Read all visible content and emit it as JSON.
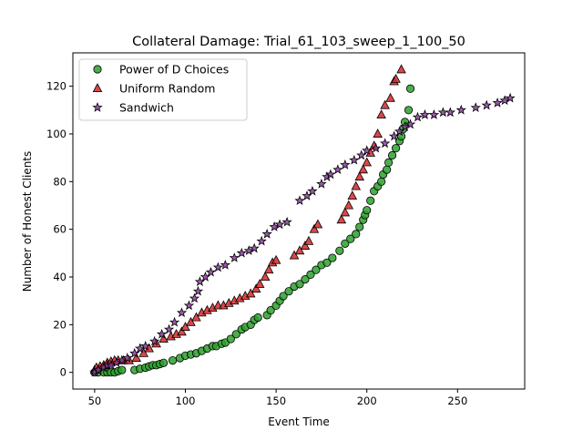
{
  "chart_data": {
    "type": "scatter",
    "title": "Collateral Damage: Trial_61_103_sweep_1_100_50",
    "xlabel": "Event Time",
    "ylabel": "Number of Honest Clients",
    "xlim": [
      38,
      287
    ],
    "ylim": [
      -7,
      134
    ],
    "xticks": [
      50,
      100,
      150,
      200,
      250
    ],
    "yticks": [
      0,
      20,
      40,
      60,
      80,
      100,
      120
    ],
    "grid": false,
    "legend_position": "top-left",
    "series": [
      {
        "name": "Power of D Choices",
        "marker": "circle",
        "color": "#2ca02c",
        "points": [
          [
            50,
            0
          ],
          [
            52,
            0
          ],
          [
            55,
            0
          ],
          [
            57,
            0
          ],
          [
            59,
            0
          ],
          [
            61,
            0
          ],
          [
            63,
            0.5
          ],
          [
            65,
            1
          ],
          [
            72,
            1
          ],
          [
            75,
            1.5
          ],
          [
            78,
            2
          ],
          [
            80,
            2.5
          ],
          [
            82,
            3
          ],
          [
            84,
            3
          ],
          [
            86,
            3.5
          ],
          [
            88,
            4
          ],
          [
            93,
            5
          ],
          [
            97,
            6
          ],
          [
            100,
            7
          ],
          [
            103,
            7.5
          ],
          [
            106,
            8
          ],
          [
            109,
            9
          ],
          [
            112,
            10
          ],
          [
            115,
            11
          ],
          [
            117,
            11
          ],
          [
            120,
            12
          ],
          [
            122,
            12.5
          ],
          [
            125,
            14
          ],
          [
            128,
            16
          ],
          [
            131,
            18
          ],
          [
            133,
            19
          ],
          [
            136,
            20
          ],
          [
            138,
            22
          ],
          [
            140,
            23
          ],
          [
            145,
            24
          ],
          [
            147,
            26
          ],
          [
            150,
            28
          ],
          [
            152,
            30
          ],
          [
            154,
            32
          ],
          [
            157,
            34
          ],
          [
            160,
            36
          ],
          [
            163,
            37
          ],
          [
            166,
            39
          ],
          [
            169,
            41
          ],
          [
            172,
            43
          ],
          [
            175,
            45
          ],
          [
            178,
            46
          ],
          [
            181,
            48
          ],
          [
            185,
            51
          ],
          [
            188,
            54
          ],
          [
            191,
            56
          ],
          [
            194,
            58
          ],
          [
            196,
            61
          ],
          [
            198,
            64
          ],
          [
            199,
            66
          ],
          [
            200,
            68
          ],
          [
            202,
            72
          ],
          [
            204,
            76
          ],
          [
            206,
            78
          ],
          [
            208,
            80
          ],
          [
            209,
            83
          ],
          [
            211,
            85
          ],
          [
            212,
            88
          ],
          [
            214,
            91
          ],
          [
            216,
            94
          ],
          [
            218,
            97
          ],
          [
            219,
            99
          ],
          [
            220,
            102
          ],
          [
            221,
            105
          ],
          [
            223,
            110
          ],
          [
            224,
            119
          ]
        ]
      },
      {
        "name": "Uniform Random",
        "marker": "triangle",
        "color": "#d62728",
        "points": [
          [
            50,
            1
          ],
          [
            51,
            2
          ],
          [
            53,
            2.5
          ],
          [
            55,
            3
          ],
          [
            57,
            4
          ],
          [
            59,
            4.5
          ],
          [
            61,
            5
          ],
          [
            63,
            5
          ],
          [
            66,
            5
          ],
          [
            69,
            5
          ],
          [
            73,
            6
          ],
          [
            77,
            8
          ],
          [
            80,
            10
          ],
          [
            84,
            12
          ],
          [
            88,
            14
          ],
          [
            92,
            15
          ],
          [
            95,
            16
          ],
          [
            98,
            17
          ],
          [
            100,
            19
          ],
          [
            103,
            21
          ],
          [
            106,
            23
          ],
          [
            109,
            25
          ],
          [
            112,
            26
          ],
          [
            115,
            27
          ],
          [
            118,
            28
          ],
          [
            121,
            28
          ],
          [
            124,
            29
          ],
          [
            127,
            30
          ],
          [
            130,
            31
          ],
          [
            133,
            32
          ],
          [
            136,
            33
          ],
          [
            139,
            35
          ],
          [
            141,
            37
          ],
          [
            144,
            40
          ],
          [
            146,
            43
          ],
          [
            148,
            46
          ],
          [
            150,
            47
          ],
          [
            160,
            49
          ],
          [
            163,
            51
          ],
          [
            166,
            53
          ],
          [
            168,
            55
          ],
          [
            171,
            60
          ],
          [
            173,
            62
          ],
          [
            186,
            64
          ],
          [
            188,
            67
          ],
          [
            190,
            70
          ],
          [
            192,
            74
          ],
          [
            194,
            78
          ],
          [
            196,
            82
          ],
          [
            198,
            85
          ],
          [
            200,
            88
          ],
          [
            202,
            92
          ],
          [
            204,
            95
          ],
          [
            206,
            100
          ],
          [
            208,
            108
          ],
          [
            210,
            112
          ],
          [
            213,
            115
          ],
          [
            215,
            122
          ],
          [
            216,
            123
          ],
          [
            219,
            127
          ]
        ]
      },
      {
        "name": "Sandwich",
        "marker": "star",
        "color": "#8a3d9e",
        "points": [
          [
            50,
            0
          ],
          [
            52,
            1
          ],
          [
            55,
            2
          ],
          [
            57,
            3
          ],
          [
            59,
            3
          ],
          [
            62,
            4
          ],
          [
            65,
            5
          ],
          [
            68,
            6
          ],
          [
            72,
            8
          ],
          [
            75,
            10
          ],
          [
            78,
            11
          ],
          [
            83,
            13
          ],
          [
            87,
            16
          ],
          [
            91,
            18
          ],
          [
            94,
            21
          ],
          [
            98,
            25
          ],
          [
            102,
            28
          ],
          [
            105,
            31
          ],
          [
            107,
            34
          ],
          [
            108,
            38
          ],
          [
            111,
            40
          ],
          [
            114,
            42
          ],
          [
            118,
            44
          ],
          [
            122,
            45
          ],
          [
            127,
            48
          ],
          [
            131,
            50
          ],
          [
            135,
            51
          ],
          [
            138,
            52
          ],
          [
            142,
            55
          ],
          [
            145,
            58
          ],
          [
            149,
            61
          ],
          [
            152,
            62
          ],
          [
            156,
            63
          ],
          [
            163,
            72
          ],
          [
            167,
            74
          ],
          [
            170,
            76
          ],
          [
            175,
            79
          ],
          [
            178,
            82
          ],
          [
            180,
            83
          ],
          [
            184,
            85
          ],
          [
            188,
            87
          ],
          [
            193,
            89
          ],
          [
            197,
            91
          ],
          [
            200,
            93
          ],
          [
            205,
            94
          ],
          [
            210,
            96
          ],
          [
            215,
            99
          ],
          [
            218,
            101
          ],
          [
            221,
            103
          ],
          [
            224,
            104
          ],
          [
            228,
            107
          ],
          [
            232,
            108
          ],
          [
            237,
            108
          ],
          [
            242,
            109
          ],
          [
            246,
            109
          ],
          [
            252,
            110
          ],
          [
            260,
            111
          ],
          [
            266,
            112
          ],
          [
            272,
            113
          ],
          [
            276,
            114
          ],
          [
            279,
            115
          ]
        ]
      }
    ]
  }
}
